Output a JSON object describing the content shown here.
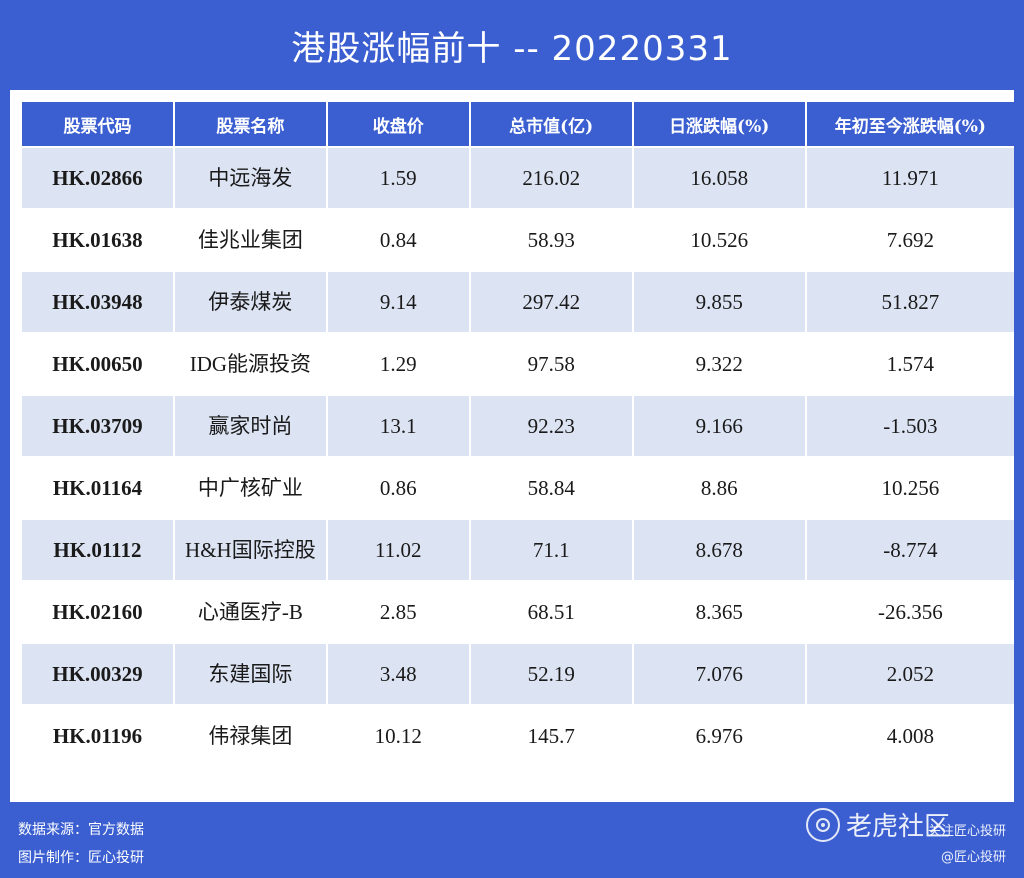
{
  "title": "港股涨幅前十 -- 20220331",
  "table": {
    "headers": [
      "股票代码",
      "股票名称",
      "收盘价",
      "总市值(亿)",
      "日涨跌幅(%)",
      "年初至今涨跌幅(%)"
    ],
    "rows": [
      {
        "code": "HK.02866",
        "name": "中远海发",
        "close": "1.59",
        "mcap": "216.02",
        "day": "16.058",
        "ytd": "11.971",
        "ytd_dir": "up"
      },
      {
        "code": "HK.01638",
        "name": "佳兆业集团",
        "close": "0.84",
        "mcap": "58.93",
        "day": "10.526",
        "ytd": "7.692",
        "ytd_dir": "up"
      },
      {
        "code": "HK.03948",
        "name": "伊泰煤炭",
        "close": "9.14",
        "mcap": "297.42",
        "day": "9.855",
        "ytd": "51.827",
        "ytd_dir": "up"
      },
      {
        "code": "HK.00650",
        "name": "IDG能源投资",
        "close": "1.29",
        "mcap": "97.58",
        "day": "9.322",
        "ytd": "1.574",
        "ytd_dir": "up"
      },
      {
        "code": "HK.03709",
        "name": "赢家时尚",
        "close": "13.1",
        "mcap": "92.23",
        "day": "9.166",
        "ytd": "-1.503",
        "ytd_dir": "down"
      },
      {
        "code": "HK.01164",
        "name": "中广核矿业",
        "close": "0.86",
        "mcap": "58.84",
        "day": "8.86",
        "ytd": "10.256",
        "ytd_dir": "up"
      },
      {
        "code": "HK.01112",
        "name": "H&H国际控股",
        "close": "11.02",
        "mcap": "71.1",
        "day": "8.678",
        "ytd": "-8.774",
        "ytd_dir": "down"
      },
      {
        "code": "HK.02160",
        "name": "心通医疗-B",
        "close": "2.85",
        "mcap": "68.51",
        "day": "8.365",
        "ytd": "-26.356",
        "ytd_dir": "down"
      },
      {
        "code": "HK.00329",
        "name": "东建国际",
        "close": "3.48",
        "mcap": "52.19",
        "day": "7.076",
        "ytd": "2.052",
        "ytd_dir": "up"
      },
      {
        "code": "HK.01196",
        "name": "伟禄集团",
        "close": "10.12",
        "mcap": "145.7",
        "day": "6.976",
        "ytd": "4.008",
        "ytd_dir": "up"
      }
    ]
  },
  "footer": {
    "source": "数据来源：官方数据",
    "maker": "图片制作：匠心投研"
  },
  "watermark": {
    "icon": "tiger-community-icon",
    "brand": "老虎社区",
    "line1": "关注匠心投研",
    "line2": "@匠心投研"
  },
  "colors": {
    "background": "#3b5fd1",
    "header": "#3b5fd1",
    "row_alt": "#dce3f2",
    "code_text": "#3a5cb8",
    "positive": "#e0302a",
    "negative": "#2c8a2c"
  }
}
